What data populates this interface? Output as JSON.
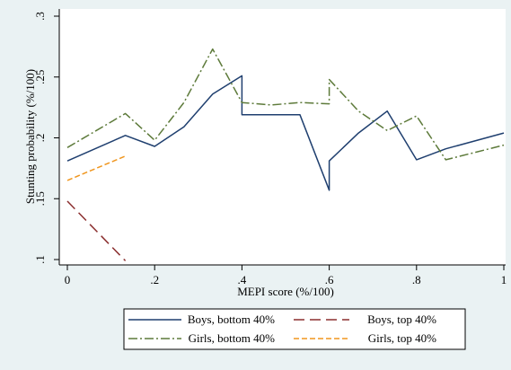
{
  "chart_data": {
    "type": "line",
    "title": "",
    "xlabel": "MEPI score (%/100)",
    "ylabel": "Stunting probability (%/100)",
    "xlim": [
      0,
      1
    ],
    "ylim": [
      0.1,
      0.3
    ],
    "xticks": [
      {
        "value": 0,
        "label": "0"
      },
      {
        "value": 0.2,
        "label": ".2"
      },
      {
        "value": 0.4,
        "label": ".4"
      },
      {
        "value": 0.6,
        "label": ".6"
      },
      {
        "value": 0.8,
        "label": ".8"
      },
      {
        "value": 1,
        "label": "1"
      }
    ],
    "yticks": [
      {
        "value": 0.1,
        "label": ".1"
      },
      {
        "value": 0.15,
        "label": ".15"
      },
      {
        "value": 0.2,
        "label": ".2"
      },
      {
        "value": 0.25,
        "label": ".25"
      },
      {
        "value": 0.3,
        "label": ".3"
      }
    ],
    "grid": false,
    "legend_position": "bottom",
    "series": [
      {
        "name": "Boys, bottom 40%",
        "color": "#1f3f6f",
        "dash": "solid",
        "points": [
          [
            0,
            0.181
          ],
          [
            0.133,
            0.202
          ],
          [
            0.2,
            0.193
          ],
          [
            0.267,
            0.209
          ],
          [
            0.333,
            0.236
          ],
          [
            0.4,
            0.251
          ],
          [
            0.4,
            0.219
          ],
          [
            0.533,
            0.219
          ],
          [
            0.6,
            0.157
          ],
          [
            0.6,
            0.181
          ],
          [
            0.667,
            0.204
          ],
          [
            0.733,
            0.222
          ],
          [
            0.8,
            0.182
          ],
          [
            0.867,
            0.191
          ],
          [
            1,
            0.204
          ]
        ]
      },
      {
        "name": "Boys, top 40%",
        "color": "#8b2f2f",
        "dash": "longdash",
        "points": [
          [
            0,
            0.148
          ],
          [
            0.133,
            0.099
          ]
        ]
      },
      {
        "name": "Girls, bottom 40%",
        "color": "#5d7a3a",
        "dash": "dashdot",
        "points": [
          [
            0,
            0.192
          ],
          [
            0.133,
            0.22
          ],
          [
            0.2,
            0.198
          ],
          [
            0.267,
            0.229
          ],
          [
            0.333,
            0.273
          ],
          [
            0.4,
            0.229
          ],
          [
            0.467,
            0.227
          ],
          [
            0.533,
            0.229
          ],
          [
            0.6,
            0.228
          ],
          [
            0.6,
            0.248
          ],
          [
            0.667,
            0.222
          ],
          [
            0.733,
            0.206
          ],
          [
            0.8,
            0.218
          ],
          [
            0.867,
            0.182
          ],
          [
            1,
            0.194
          ]
        ]
      },
      {
        "name": "Girls, top 40%",
        "color": "#f0961e",
        "dash": "shortdash",
        "points": [
          [
            0,
            0.165
          ],
          [
            0.133,
            0.185
          ]
        ]
      }
    ]
  }
}
